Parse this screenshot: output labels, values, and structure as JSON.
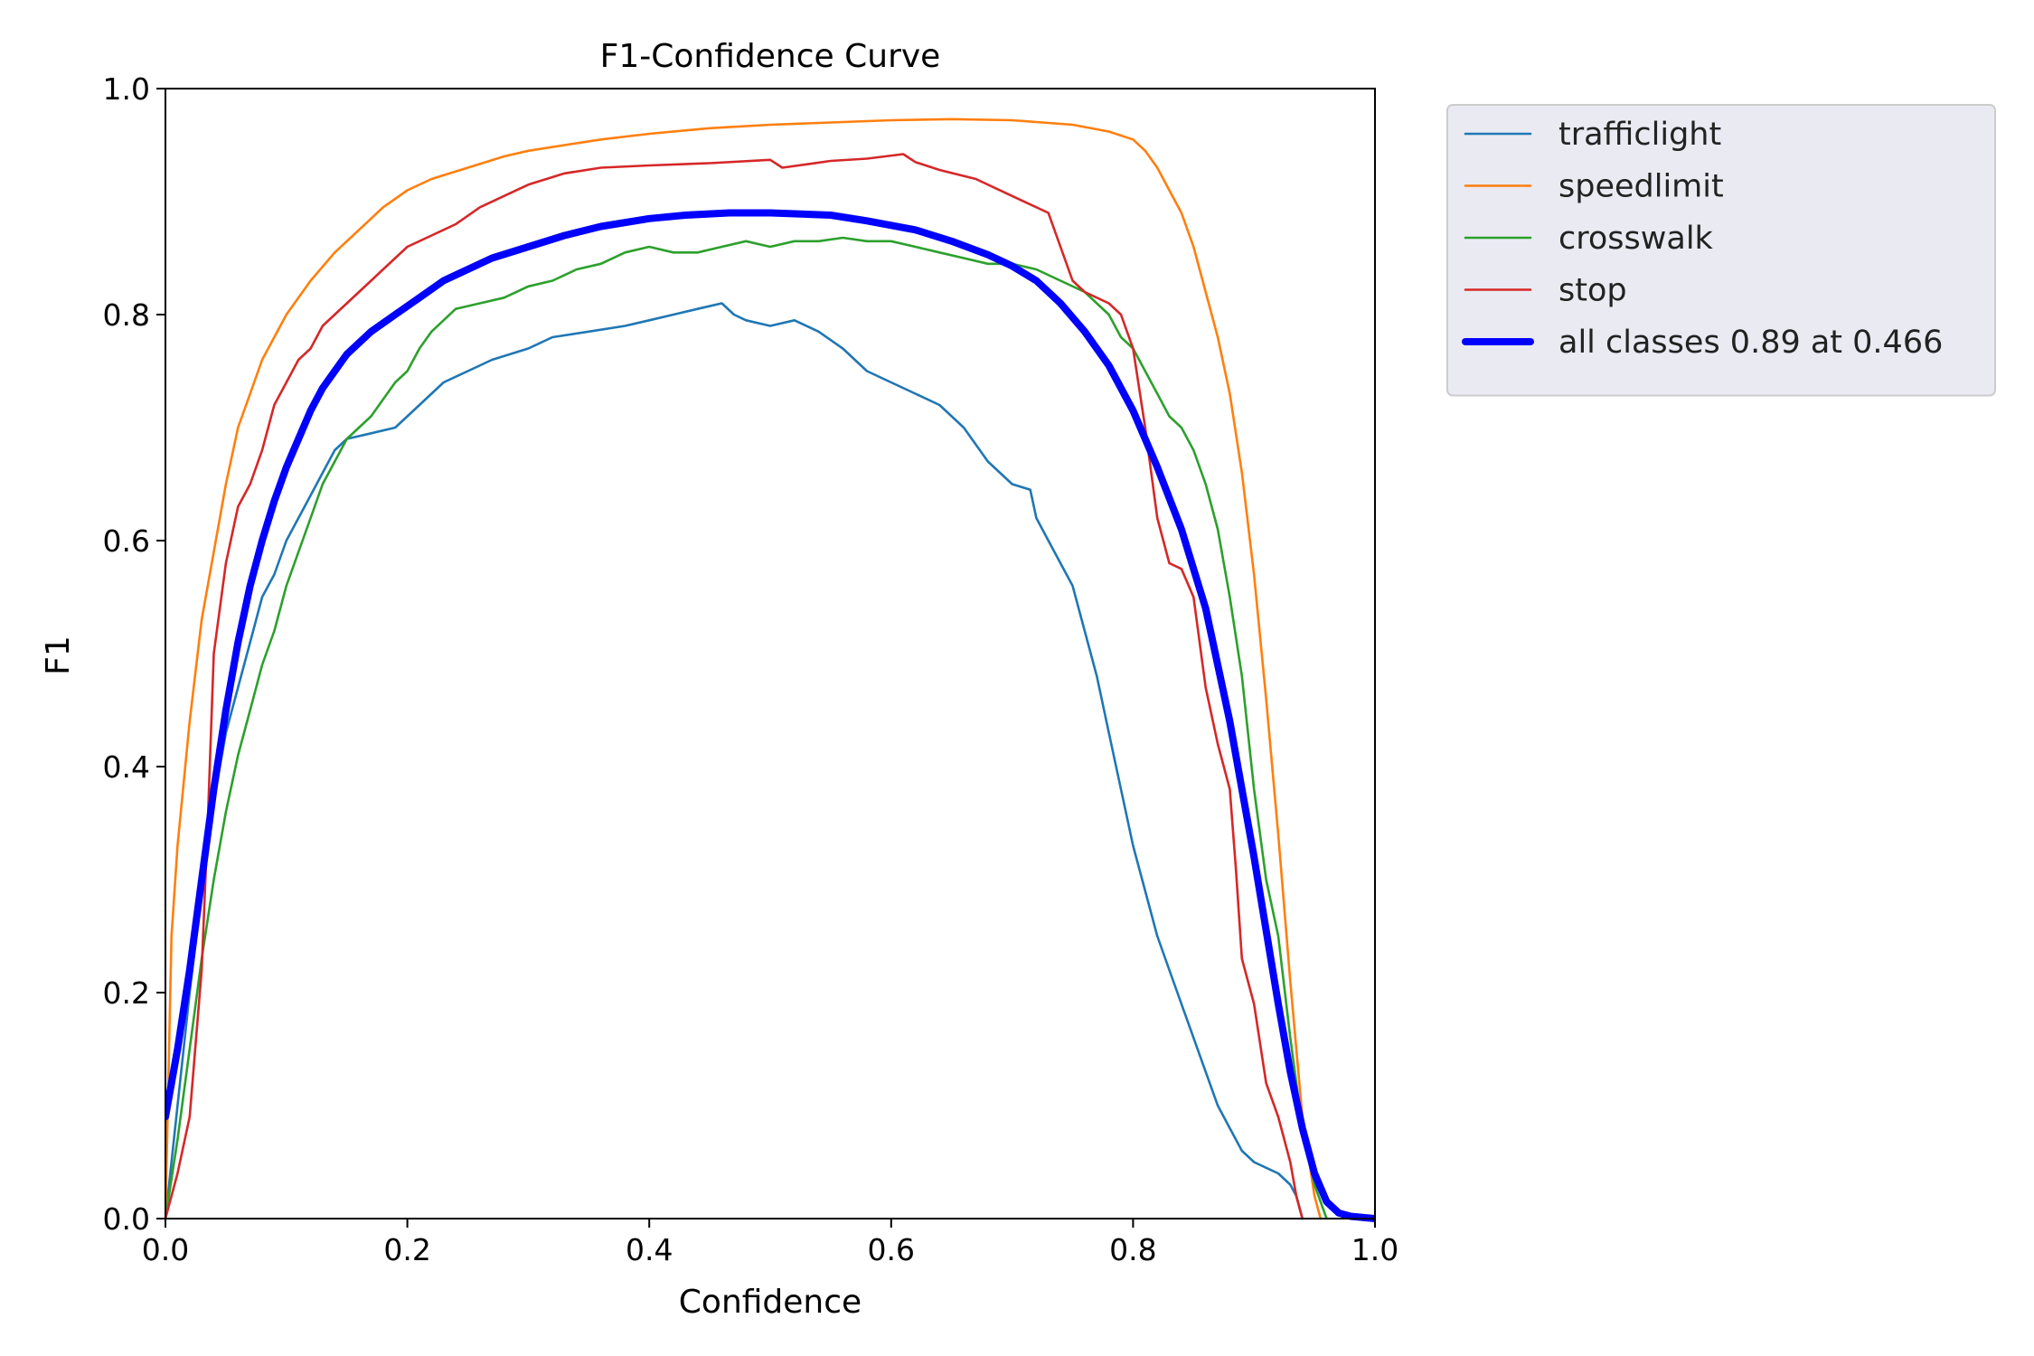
{
  "chart_data": {
    "type": "line",
    "title": "F1-Confidence Curve",
    "xlabel": "Confidence",
    "ylabel": "F1",
    "xlim": [
      0.0,
      1.0
    ],
    "ylim": [
      0.0,
      1.0
    ],
    "xticks": [
      "0.0",
      "0.2",
      "0.4",
      "0.6",
      "0.8",
      "1.0"
    ],
    "yticks": [
      "0.0",
      "0.2",
      "0.4",
      "0.6",
      "0.8",
      "1.0"
    ],
    "grid": false,
    "legend_position": "outside-top-right",
    "series": [
      {
        "name": "trafficlight",
        "color": "#1f77b4",
        "points": [
          [
            0,
            0.0
          ],
          [
            0.01,
            0.1
          ],
          [
            0.02,
            0.2
          ],
          [
            0.03,
            0.29
          ],
          [
            0.04,
            0.37
          ],
          [
            0.05,
            0.43
          ],
          [
            0.06,
            0.47
          ],
          [
            0.07,
            0.51
          ],
          [
            0.08,
            0.55
          ],
          [
            0.09,
            0.57
          ],
          [
            0.1,
            0.6
          ],
          [
            0.11,
            0.62
          ],
          [
            0.12,
            0.64
          ],
          [
            0.13,
            0.66
          ],
          [
            0.14,
            0.68
          ],
          [
            0.15,
            0.69
          ],
          [
            0.17,
            0.695
          ],
          [
            0.19,
            0.7
          ],
          [
            0.21,
            0.72
          ],
          [
            0.23,
            0.74
          ],
          [
            0.25,
            0.75
          ],
          [
            0.27,
            0.76
          ],
          [
            0.3,
            0.77
          ],
          [
            0.32,
            0.78
          ],
          [
            0.35,
            0.785
          ],
          [
            0.38,
            0.79
          ],
          [
            0.4,
            0.795
          ],
          [
            0.42,
            0.8
          ],
          [
            0.44,
            0.805
          ],
          [
            0.46,
            0.81
          ],
          [
            0.47,
            0.8
          ],
          [
            0.48,
            0.795
          ],
          [
            0.5,
            0.79
          ],
          [
            0.52,
            0.795
          ],
          [
            0.54,
            0.785
          ],
          [
            0.56,
            0.77
          ],
          [
            0.58,
            0.75
          ],
          [
            0.6,
            0.74
          ],
          [
            0.62,
            0.73
          ],
          [
            0.64,
            0.72
          ],
          [
            0.66,
            0.7
          ],
          [
            0.68,
            0.67
          ],
          [
            0.7,
            0.65
          ],
          [
            0.715,
            0.645
          ],
          [
            0.72,
            0.62
          ],
          [
            0.73,
            0.6
          ],
          [
            0.74,
            0.58
          ],
          [
            0.75,
            0.56
          ],
          [
            0.76,
            0.52
          ],
          [
            0.77,
            0.48
          ],
          [
            0.78,
            0.43
          ],
          [
            0.79,
            0.38
          ],
          [
            0.8,
            0.33
          ],
          [
            0.81,
            0.29
          ],
          [
            0.82,
            0.25
          ],
          [
            0.83,
            0.22
          ],
          [
            0.84,
            0.19
          ],
          [
            0.85,
            0.16
          ],
          [
            0.86,
            0.13
          ],
          [
            0.87,
            0.1
          ],
          [
            0.88,
            0.08
          ],
          [
            0.89,
            0.06
          ],
          [
            0.9,
            0.05
          ],
          [
            0.91,
            0.045
          ],
          [
            0.92,
            0.04
          ],
          [
            0.93,
            0.03
          ],
          [
            0.935,
            0.02
          ],
          [
            0.94,
            0.0
          ]
        ]
      },
      {
        "name": "speedlimit",
        "color": "#ff7f0e",
        "points": [
          [
            0,
            0.0
          ],
          [
            0.005,
            0.25
          ],
          [
            0.01,
            0.33
          ],
          [
            0.02,
            0.44
          ],
          [
            0.03,
            0.53
          ],
          [
            0.04,
            0.59
          ],
          [
            0.05,
            0.65
          ],
          [
            0.06,
            0.7
          ],
          [
            0.07,
            0.73
          ],
          [
            0.08,
            0.76
          ],
          [
            0.09,
            0.78
          ],
          [
            0.1,
            0.8
          ],
          [
            0.12,
            0.83
          ],
          [
            0.14,
            0.855
          ],
          [
            0.16,
            0.875
          ],
          [
            0.18,
            0.895
          ],
          [
            0.2,
            0.91
          ],
          [
            0.22,
            0.92
          ],
          [
            0.25,
            0.93
          ],
          [
            0.28,
            0.94
          ],
          [
            0.3,
            0.945
          ],
          [
            0.33,
            0.95
          ],
          [
            0.36,
            0.955
          ],
          [
            0.4,
            0.96
          ],
          [
            0.45,
            0.965
          ],
          [
            0.5,
            0.968
          ],
          [
            0.55,
            0.97
          ],
          [
            0.6,
            0.972
          ],
          [
            0.65,
            0.973
          ],
          [
            0.7,
            0.972
          ],
          [
            0.75,
            0.968
          ],
          [
            0.78,
            0.962
          ],
          [
            0.8,
            0.955
          ],
          [
            0.81,
            0.945
          ],
          [
            0.82,
            0.93
          ],
          [
            0.83,
            0.91
          ],
          [
            0.84,
            0.89
          ],
          [
            0.85,
            0.86
          ],
          [
            0.86,
            0.82
          ],
          [
            0.87,
            0.78
          ],
          [
            0.88,
            0.73
          ],
          [
            0.89,
            0.66
          ],
          [
            0.9,
            0.57
          ],
          [
            0.91,
            0.46
          ],
          [
            0.92,
            0.34
          ],
          [
            0.93,
            0.21
          ],
          [
            0.94,
            0.09
          ],
          [
            0.95,
            0.02
          ],
          [
            0.955,
            0.0
          ]
        ]
      },
      {
        "name": "crosswalk",
        "color": "#2ca02c",
        "points": [
          [
            0,
            0.0
          ],
          [
            0.01,
            0.07
          ],
          [
            0.02,
            0.15
          ],
          [
            0.03,
            0.23
          ],
          [
            0.04,
            0.3
          ],
          [
            0.05,
            0.36
          ],
          [
            0.06,
            0.41
          ],
          [
            0.07,
            0.45
          ],
          [
            0.08,
            0.49
          ],
          [
            0.09,
            0.52
          ],
          [
            0.1,
            0.56
          ],
          [
            0.11,
            0.59
          ],
          [
            0.12,
            0.62
          ],
          [
            0.13,
            0.65
          ],
          [
            0.14,
            0.67
          ],
          [
            0.15,
            0.69
          ],
          [
            0.16,
            0.7
          ],
          [
            0.17,
            0.71
          ],
          [
            0.18,
            0.725
          ],
          [
            0.19,
            0.74
          ],
          [
            0.2,
            0.75
          ],
          [
            0.21,
            0.77
          ],
          [
            0.22,
            0.785
          ],
          [
            0.23,
            0.795
          ],
          [
            0.24,
            0.805
          ],
          [
            0.26,
            0.81
          ],
          [
            0.28,
            0.815
          ],
          [
            0.3,
            0.825
          ],
          [
            0.32,
            0.83
          ],
          [
            0.34,
            0.84
          ],
          [
            0.36,
            0.845
          ],
          [
            0.38,
            0.855
          ],
          [
            0.4,
            0.86
          ],
          [
            0.42,
            0.855
          ],
          [
            0.44,
            0.855
          ],
          [
            0.46,
            0.86
          ],
          [
            0.48,
            0.865
          ],
          [
            0.5,
            0.86
          ],
          [
            0.52,
            0.865
          ],
          [
            0.54,
            0.865
          ],
          [
            0.56,
            0.868
          ],
          [
            0.58,
            0.865
          ],
          [
            0.6,
            0.865
          ],
          [
            0.62,
            0.86
          ],
          [
            0.64,
            0.855
          ],
          [
            0.66,
            0.85
          ],
          [
            0.68,
            0.845
          ],
          [
            0.7,
            0.845
          ],
          [
            0.72,
            0.84
          ],
          [
            0.74,
            0.83
          ],
          [
            0.76,
            0.82
          ],
          [
            0.78,
            0.8
          ],
          [
            0.79,
            0.78
          ],
          [
            0.8,
            0.77
          ],
          [
            0.81,
            0.75
          ],
          [
            0.82,
            0.73
          ],
          [
            0.83,
            0.71
          ],
          [
            0.84,
            0.7
          ],
          [
            0.85,
            0.68
          ],
          [
            0.86,
            0.65
          ],
          [
            0.87,
            0.61
          ],
          [
            0.88,
            0.55
          ],
          [
            0.89,
            0.48
          ],
          [
            0.9,
            0.38
          ],
          [
            0.91,
            0.3
          ],
          [
            0.92,
            0.25
          ],
          [
            0.93,
            0.16
          ],
          [
            0.94,
            0.08
          ],
          [
            0.95,
            0.03
          ],
          [
            0.96,
            0.0
          ]
        ]
      },
      {
        "name": "stop",
        "color": "#d62728",
        "points": [
          [
            0,
            0.0
          ],
          [
            0.01,
            0.04
          ],
          [
            0.02,
            0.09
          ],
          [
            0.03,
            0.22
          ],
          [
            0.035,
            0.35
          ],
          [
            0.04,
            0.5
          ],
          [
            0.05,
            0.58
          ],
          [
            0.06,
            0.63
          ],
          [
            0.07,
            0.65
          ],
          [
            0.08,
            0.68
          ],
          [
            0.09,
            0.72
          ],
          [
            0.1,
            0.74
          ],
          [
            0.11,
            0.76
          ],
          [
            0.12,
            0.77
          ],
          [
            0.13,
            0.79
          ],
          [
            0.14,
            0.8
          ],
          [
            0.15,
            0.81
          ],
          [
            0.16,
            0.82
          ],
          [
            0.17,
            0.83
          ],
          [
            0.18,
            0.84
          ],
          [
            0.19,
            0.85
          ],
          [
            0.2,
            0.86
          ],
          [
            0.22,
            0.87
          ],
          [
            0.24,
            0.88
          ],
          [
            0.26,
            0.895
          ],
          [
            0.28,
            0.905
          ],
          [
            0.3,
            0.915
          ],
          [
            0.33,
            0.925
          ],
          [
            0.36,
            0.93
          ],
          [
            0.4,
            0.932
          ],
          [
            0.45,
            0.934
          ],
          [
            0.5,
            0.937
          ],
          [
            0.51,
            0.93
          ],
          [
            0.53,
            0.933
          ],
          [
            0.55,
            0.936
          ],
          [
            0.58,
            0.938
          ],
          [
            0.61,
            0.942
          ],
          [
            0.62,
            0.935
          ],
          [
            0.64,
            0.928
          ],
          [
            0.67,
            0.92
          ],
          [
            0.7,
            0.905
          ],
          [
            0.73,
            0.89
          ],
          [
            0.74,
            0.86
          ],
          [
            0.75,
            0.83
          ],
          [
            0.76,
            0.82
          ],
          [
            0.78,
            0.81
          ],
          [
            0.79,
            0.8
          ],
          [
            0.8,
            0.77
          ],
          [
            0.81,
            0.7
          ],
          [
            0.82,
            0.62
          ],
          [
            0.83,
            0.58
          ],
          [
            0.84,
            0.575
          ],
          [
            0.85,
            0.55
          ],
          [
            0.86,
            0.47
          ],
          [
            0.87,
            0.42
          ],
          [
            0.88,
            0.38
          ],
          [
            0.885,
            0.31
          ],
          [
            0.89,
            0.23
          ],
          [
            0.9,
            0.19
          ],
          [
            0.91,
            0.12
          ],
          [
            0.92,
            0.09
          ],
          [
            0.93,
            0.05
          ],
          [
            0.935,
            0.02
          ],
          [
            0.94,
            0.0
          ]
        ]
      },
      {
        "name": "all classes 0.89 at 0.466",
        "color": "#0000ff",
        "bold": true,
        "points": [
          [
            0,
            0.09
          ],
          [
            0.01,
            0.15
          ],
          [
            0.02,
            0.22
          ],
          [
            0.03,
            0.3
          ],
          [
            0.04,
            0.38
          ],
          [
            0.05,
            0.45
          ],
          [
            0.06,
            0.51
          ],
          [
            0.07,
            0.56
          ],
          [
            0.08,
            0.6
          ],
          [
            0.09,
            0.635
          ],
          [
            0.1,
            0.665
          ],
          [
            0.11,
            0.69
          ],
          [
            0.12,
            0.715
          ],
          [
            0.13,
            0.735
          ],
          [
            0.14,
            0.75
          ],
          [
            0.15,
            0.765
          ],
          [
            0.17,
            0.785
          ],
          [
            0.19,
            0.8
          ],
          [
            0.21,
            0.815
          ],
          [
            0.23,
            0.83
          ],
          [
            0.25,
            0.84
          ],
          [
            0.27,
            0.85
          ],
          [
            0.3,
            0.86
          ],
          [
            0.33,
            0.87
          ],
          [
            0.36,
            0.878
          ],
          [
            0.4,
            0.885
          ],
          [
            0.43,
            0.888
          ],
          [
            0.466,
            0.89
          ],
          [
            0.5,
            0.89
          ],
          [
            0.55,
            0.888
          ],
          [
            0.58,
            0.883
          ],
          [
            0.62,
            0.875
          ],
          [
            0.65,
            0.865
          ],
          [
            0.68,
            0.853
          ],
          [
            0.7,
            0.843
          ],
          [
            0.72,
            0.83
          ],
          [
            0.74,
            0.81
          ],
          [
            0.76,
            0.785
          ],
          [
            0.78,
            0.755
          ],
          [
            0.8,
            0.715
          ],
          [
            0.82,
            0.665
          ],
          [
            0.84,
            0.61
          ],
          [
            0.86,
            0.54
          ],
          [
            0.88,
            0.44
          ],
          [
            0.9,
            0.32
          ],
          [
            0.92,
            0.19
          ],
          [
            0.93,
            0.13
          ],
          [
            0.94,
            0.08
          ],
          [
            0.95,
            0.04
          ],
          [
            0.96,
            0.015
          ],
          [
            0.97,
            0.005
          ],
          [
            0.98,
            0.002
          ],
          [
            1.0,
            0.0
          ]
        ]
      }
    ]
  }
}
